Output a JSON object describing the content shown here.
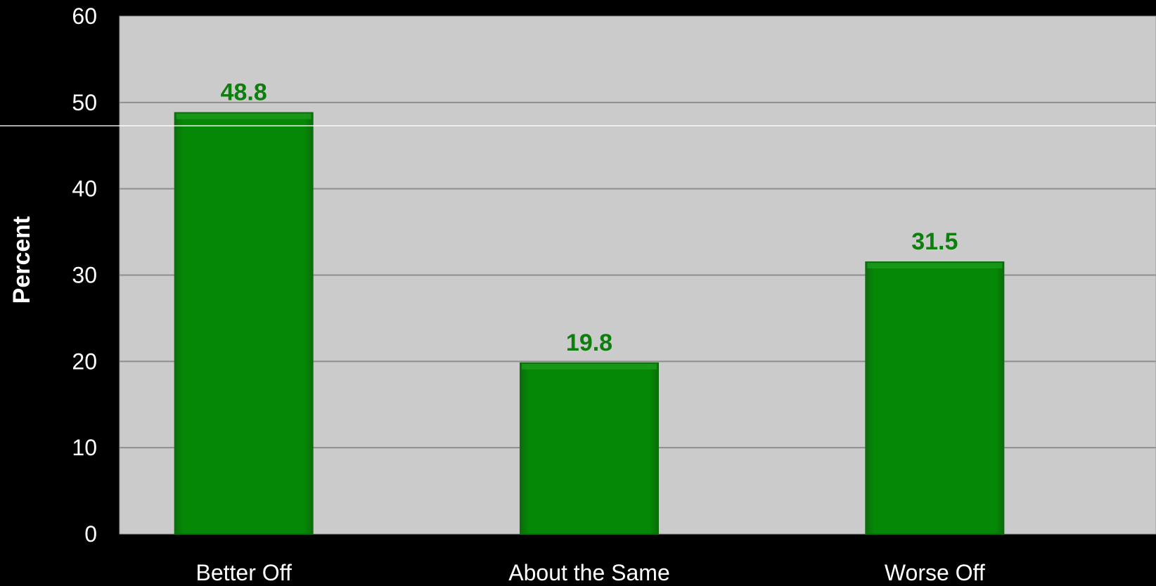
{
  "chart_data": {
    "type": "bar",
    "categories": [
      "Better Off",
      "About the Same",
      "Worse Off"
    ],
    "values": [
      48.8,
      19.8,
      31.5
    ],
    "value_labels": [
      "48.8",
      "19.8",
      "31.5"
    ],
    "title": "",
    "xlabel": "",
    "ylabel": "Percent",
    "ylim": [
      0,
      60
    ],
    "yticks": [
      "0",
      "10",
      "20",
      "30",
      "40",
      "50",
      "60"
    ],
    "grid": "horizontal",
    "legend": "none"
  },
  "colors": {
    "background": "#000000",
    "plot_area": "#cbcbcb",
    "gridline": "#8e8e8e",
    "bar_fill": "#058805",
    "bar_edge": "#0f6b0f",
    "value_label": "#0c7f0c",
    "text": "#ffffff"
  }
}
